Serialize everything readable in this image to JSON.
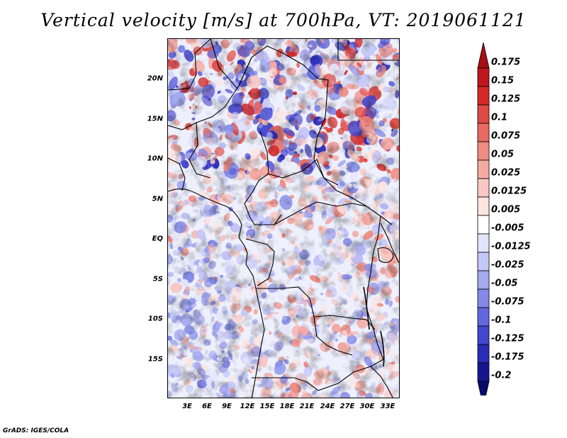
{
  "title": "Vertical velocity [m/s] at 700hPa, VT: 2019061121",
  "latitude_labels": [
    "20N",
    "15N",
    "10N",
    "5N",
    "EQ",
    "5S",
    "10S",
    "15S"
  ],
  "latitude_values": [
    20,
    15,
    10,
    5,
    0,
    -5,
    -10,
    -15
  ],
  "longitude_labels": [
    "3E",
    "6E",
    "9E",
    "12E",
    "15E",
    "18E",
    "21E",
    "24E",
    "27E",
    "30E",
    "33E"
  ],
  "longitude_values": [
    3,
    6,
    9,
    12,
    15,
    18,
    21,
    24,
    27,
    30,
    33
  ],
  "map_extent": {
    "lon_min": 0.5,
    "lon_max": 35,
    "lat_min": -20,
    "lat_max": 24.5
  },
  "colorbar": {
    "labels": [
      "0.175",
      "0.15",
      "0.125",
      "0.1",
      "0.075",
      "0.05",
      "0.025",
      "0.0125",
      "0.005",
      "-0.005",
      "-0.0125",
      "-0.025",
      "-0.05",
      "-0.075",
      "-0.1",
      "-0.125",
      "-0.175",
      "-0.2"
    ],
    "colors": [
      "#a50f15",
      "#c0161e",
      "#d42a2a",
      "#e04a45",
      "#e86a62",
      "#ef8b82",
      "#f4aaa3",
      "#f8c8c2",
      "#fce4e1",
      "#ffffff",
      "#e2e4fb",
      "#c4c8f6",
      "#a5a9f0",
      "#8389e8",
      "#6267dd",
      "#4447cf",
      "#2a2bb8",
      "#16178f",
      "#080a6e"
    ]
  },
  "credit": "GrADS: IGES/COLA"
}
